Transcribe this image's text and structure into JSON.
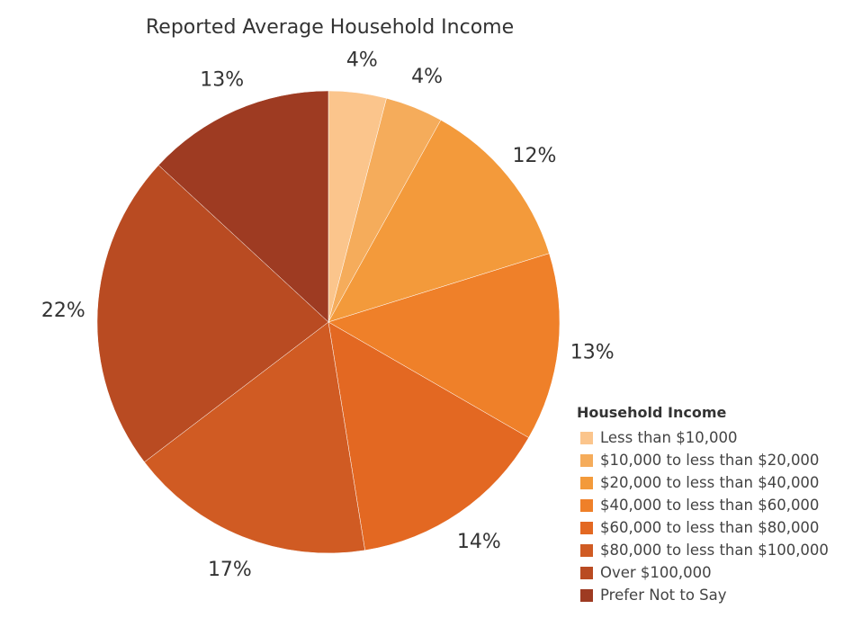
{
  "chart_data": {
    "type": "pie",
    "title": "Reported Average Household Income",
    "legend_title": "Household Income",
    "legend_position": "bottom-right",
    "slices": [
      {
        "label": "Less than $10,000",
        "value": 4,
        "display": "4%",
        "color": "#fbc58c"
      },
      {
        "label": "$10,000 to less than $20,000",
        "value": 4,
        "display": "4%",
        "color": "#f5ac5b"
      },
      {
        "label": "$20,000 to less than $40,000",
        "value": 12,
        "display": "12%",
        "color": "#f39a3b"
      },
      {
        "label": "$40,000 to less than $60,000",
        "value": 13,
        "display": "13%",
        "color": "#ef8029"
      },
      {
        "label": "$60,000 to less than $80,000",
        "value": 14,
        "display": "14%",
        "color": "#e36822"
      },
      {
        "label": "$80,000 to less than $100,000",
        "value": 17,
        "display": "17%",
        "color": "#d05b23"
      },
      {
        "label": "Over $100,000",
        "value": 22,
        "display": "22%",
        "color": "#b94b22"
      },
      {
        "label": "Prefer Not to Say",
        "value": 13,
        "display": "13%",
        "color": "#9e3b22"
      }
    ]
  }
}
